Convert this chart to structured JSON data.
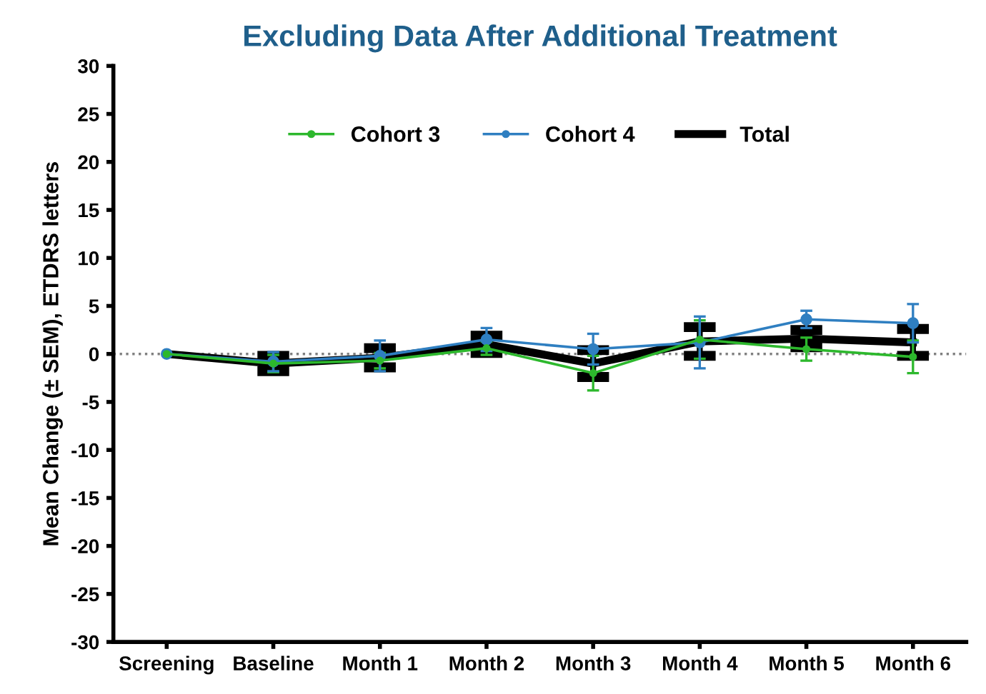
{
  "chart_data": {
    "type": "line",
    "title": "Excluding Data After Additional Treatment",
    "ylabel": "Mean Change (± SEM), ETDRS letters",
    "categories": [
      "Screening",
      "Baseline",
      "Month 1",
      "Month 2",
      "Month 3",
      "Month 4",
      "Month 5",
      "Month 6"
    ],
    "series": [
      {
        "name": "Cohort 3",
        "color": "#2db82d",
        "values": [
          0,
          -1.0,
          -0.7,
          0.6,
          -2.0,
          1.5,
          0.5,
          -0.3
        ],
        "errors": [
          null,
          0.9,
          0.8,
          0.7,
          1.8,
          2.0,
          1.2,
          1.7
        ]
      },
      {
        "name": "Cohort 4",
        "color": "#2f7fc1",
        "values": [
          0,
          -0.8,
          -0.2,
          1.5,
          0.5,
          1.2,
          3.6,
          3.2
        ],
        "errors": [
          null,
          1.0,
          1.6,
          1.2,
          1.6,
          2.7,
          0.9,
          2.0
        ]
      },
      {
        "name": "Total",
        "color": "#000000",
        "marker": "none",
        "values": [
          0,
          -1.0,
          -0.4,
          1.0,
          -1.0,
          1.3,
          1.6,
          1.2
        ],
        "errors": [
          null,
          0.8,
          1.0,
          0.9,
          1.4,
          1.5,
          0.9,
          1.4
        ]
      }
    ],
    "ylim": [
      -30,
      30
    ],
    "yticks": [
      -30,
      -25,
      -20,
      -15,
      -10,
      -5,
      0,
      5,
      10,
      15,
      20,
      25,
      30
    ],
    "ref_lines": [
      {
        "axis": "y",
        "value": 0,
        "color": "#808080",
        "line_style": "dotted"
      }
    ],
    "grid": false,
    "legend": "top",
    "marker": "circle"
  }
}
